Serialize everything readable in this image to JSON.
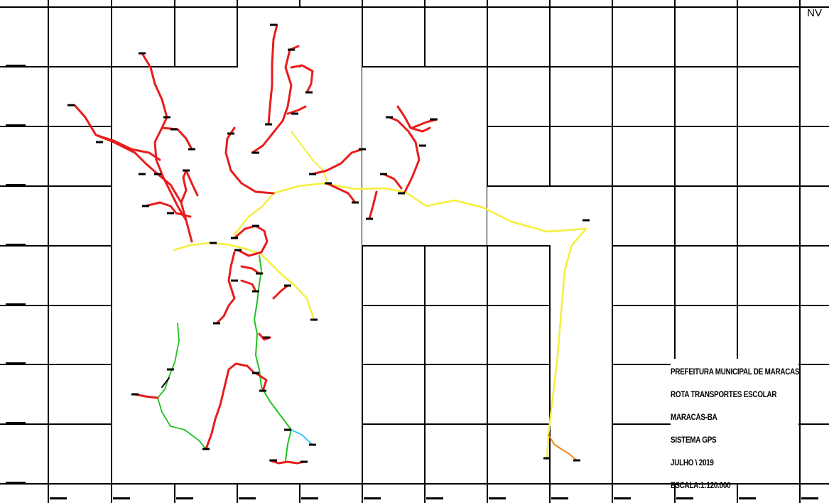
{
  "corner_label": "NV",
  "title_block": {
    "line1": "PREFEITURA MUNICIPAL DE MARACAS",
    "line2": "ROTA TRANSPORTES ESCOLAR",
    "line3": "MARACÁS-BA",
    "line4": "SISTEMA GPS",
    "line5": "JULHO \\ 2019",
    "line6": "ESCALA:1:120.000"
  },
  "colors": {
    "grid": "#000000",
    "route_main": "#e81c1c",
    "route_highway": "#f5ef3a",
    "route_green": "#1fc21f",
    "route_cyan": "#39c6f0",
    "route_orange": "#f08a1c",
    "marker": "#000000"
  }
}
